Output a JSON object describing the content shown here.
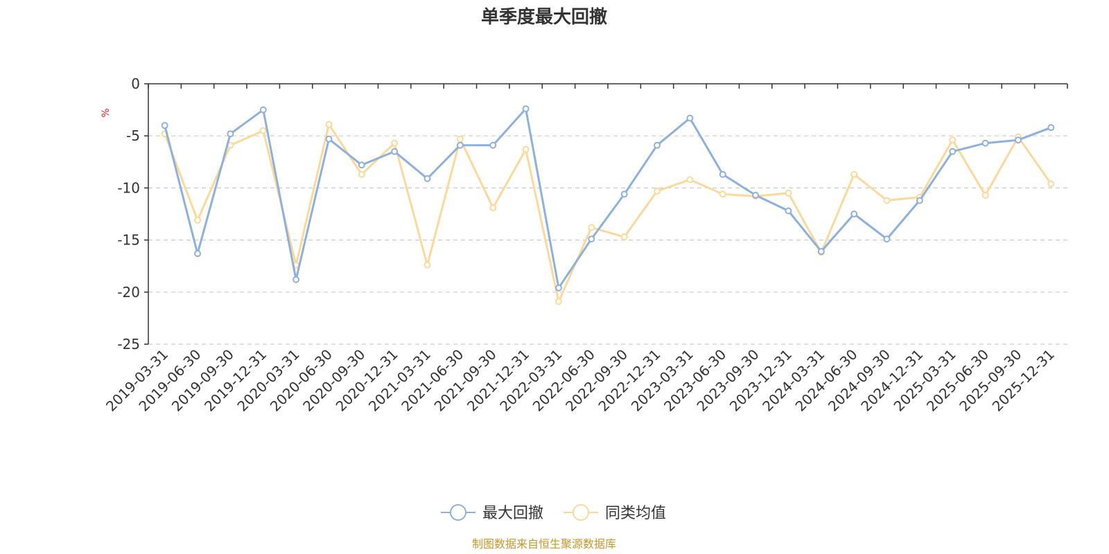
{
  "chart_data": {
    "type": "line",
    "title": "单季度最大回撤",
    "ylabel": "%",
    "ylim": [
      -25,
      0
    ],
    "yticks": [
      0,
      -5,
      -10,
      -15,
      -20,
      -25
    ],
    "grid": true,
    "legend_placement": "bottom-center",
    "x": [
      "2019-03-31",
      "2019-06-30",
      "2019-09-30",
      "2019-12-31",
      "2020-03-31",
      "2020-06-30",
      "2020-09-30",
      "2020-12-31",
      "2021-03-31",
      "2021-06-30",
      "2021-09-30",
      "2021-12-31",
      "2022-03-31",
      "2022-06-30",
      "2022-09-30",
      "2022-12-31",
      "2023-03-31",
      "2023-06-30",
      "2023-09-30",
      "2023-12-31",
      "2024-03-31",
      "2024-06-30",
      "2024-09-30",
      "2024-12-31",
      "2025-03-31",
      "2025-06-30",
      "2025-09-30",
      "2025-12-31"
    ],
    "series": [
      {
        "name": "最大回撤",
        "color": "#8eb0dc",
        "values": [
          -4.0,
          -16.3,
          -4.8,
          -2.5,
          -18.8,
          -5.3,
          -7.8,
          -6.5,
          -9.1,
          -5.9,
          -5.9,
          -2.4,
          -19.6,
          -14.9,
          -10.6,
          -5.9,
          -3.3,
          -8.7,
          -10.7,
          -12.2,
          -16.1,
          -12.5,
          -14.9,
          -11.2,
          -6.5,
          -5.7,
          -5.4,
          -4.2
        ]
      },
      {
        "name": "同类均值",
        "color": "#fcd99a",
        "values": [
          -4.8,
          -13.1,
          -5.9,
          -4.5,
          -17.4,
          -3.9,
          -8.7,
          -5.7,
          -17.4,
          -5.3,
          -11.9,
          -6.3,
          -20.9,
          -13.8,
          -14.7,
          -10.3,
          -9.2,
          -10.6,
          -10.8,
          -10.5,
          -16.2,
          -8.7,
          -11.2,
          -10.9,
          -5.4,
          -10.7,
          -5.1,
          -9.6
        ]
      }
    ]
  },
  "source_note": "制图数据来自恒生聚源数据库"
}
